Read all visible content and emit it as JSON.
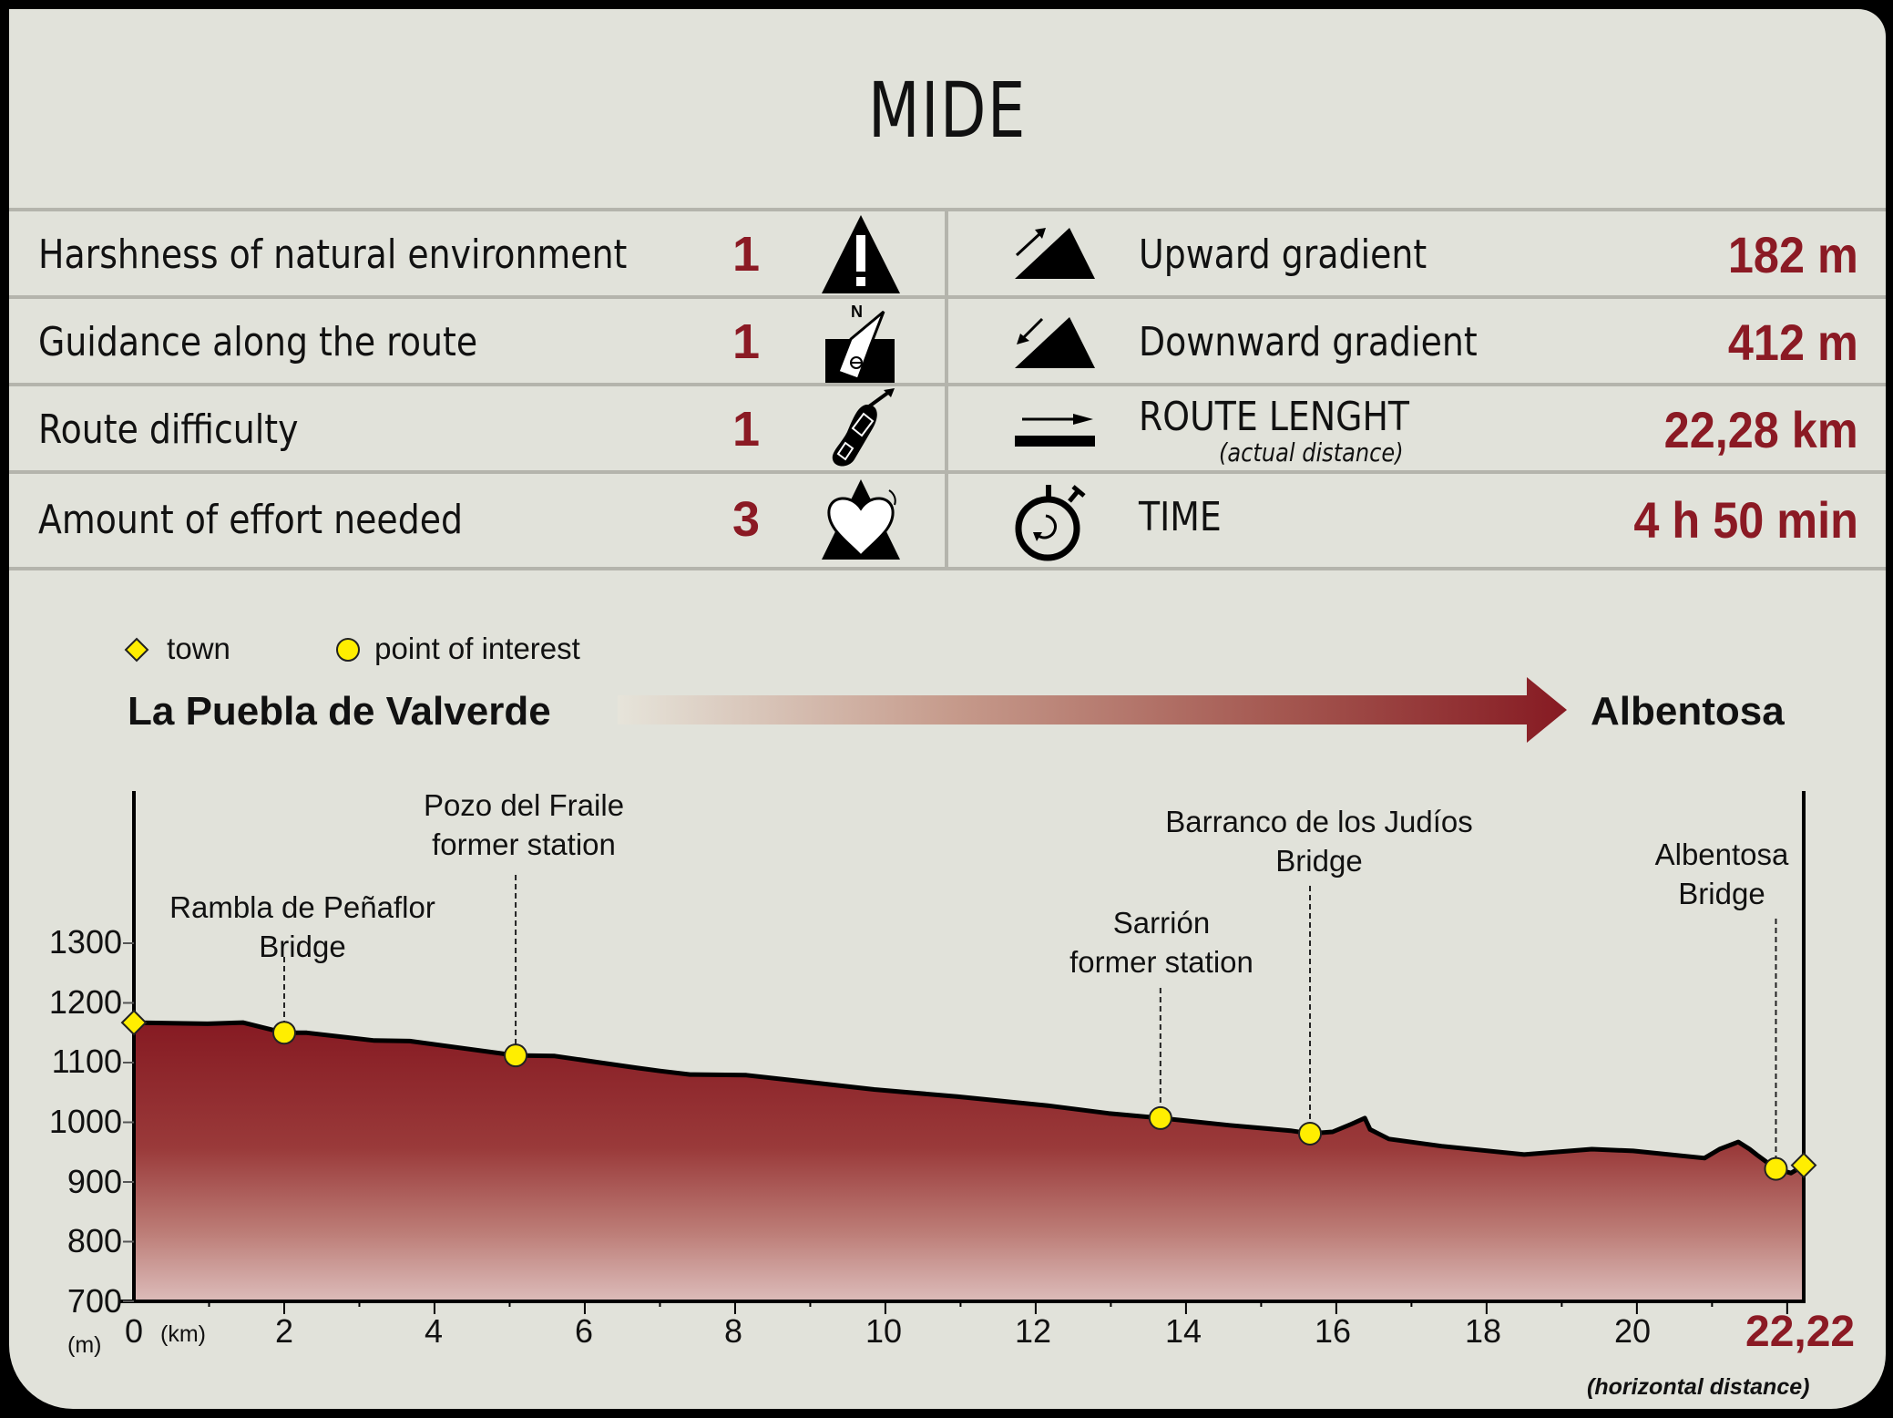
{
  "title": "MIDE",
  "mide": [
    {
      "label": "Harshness of natural environment",
      "score": "1",
      "icon": "mountain-warning-icon"
    },
    {
      "label": "Guidance along the route",
      "score": "1",
      "icon": "compass-orientation-icon"
    },
    {
      "label": "Route difficulty",
      "score": "1",
      "icon": "footprint-icon"
    },
    {
      "label": "Amount of effort needed",
      "score": "3",
      "icon": "heart-effort-icon"
    }
  ],
  "stats": [
    {
      "label": "Upward gradient",
      "sublabel": "",
      "value": "182 m",
      "icon": "upward-gradient-icon"
    },
    {
      "label": "Downward gradient",
      "sublabel": "",
      "value": "412 m",
      "icon": "downward-gradient-icon"
    },
    {
      "label": "ROUTE LENGHT",
      "sublabel": "(actual distance)",
      "value": "22,28 km",
      "icon": "route-length-icon"
    },
    {
      "label": "TIME",
      "sublabel": "",
      "value": "4 h 50 min",
      "icon": "stopwatch-icon"
    }
  ],
  "legend": {
    "town": "town",
    "poi": "point of interest"
  },
  "route": {
    "start": "La Puebla de Valverde",
    "end": "Albentosa"
  },
  "colors": {
    "accent": "#8b1a24",
    "background": "#e1e2da",
    "marker": "#ffee00",
    "divider": "#b4b4ac"
  },
  "chart_data": {
    "type": "area",
    "title": "Elevation profile: La Puebla de Valverde → Albentosa",
    "xlabel": "(km)",
    "ylabel": "(m)",
    "xlim": [
      0,
      22.22
    ],
    "ylim": [
      700,
      1300
    ],
    "x_ticks": [
      "0",
      "2",
      "4",
      "6",
      "8",
      "10",
      "12",
      "14",
      "16",
      "18",
      "20"
    ],
    "x_end_label": "22,22",
    "x_note": "(horizontal distance)",
    "y_ticks": [
      "1300",
      "1200",
      "1100",
      "1000",
      "900",
      "800",
      "700"
    ],
    "grid": false,
    "x": [
      0,
      0.98,
      1.45,
      2.0,
      2.3,
      3.2,
      3.67,
      5.08,
      5.6,
      6.2,
      6.7,
      7.0,
      7.4,
      8.15,
      9.0,
      9.85,
      10.95,
      12.16,
      12.97,
      13.66,
      14.58,
      15.39,
      15.65,
      15.95,
      16.2,
      16.38,
      16.45,
      16.7,
      17.4,
      18.5,
      19.4,
      19.95,
      20.9,
      21.1,
      21.35,
      21.5,
      21.6,
      21.85,
      22.05,
      22.22
    ],
    "elevation": [
      1167,
      1165,
      1167,
      1150,
      1150,
      1137,
      1136,
      1112,
      1111,
      1100,
      1091,
      1086,
      1080,
      1079,
      1067,
      1055,
      1043,
      1028,
      1015,
      1007,
      995,
      986,
      981,
      984,
      997,
      1007,
      988,
      972,
      960,
      946,
      955,
      952,
      940,
      955,
      967,
      955,
      945,
      922,
      915,
      928
    ],
    "towns": [
      {
        "name": "La Puebla de Valverde",
        "km": 0,
        "elev": 1167
      },
      {
        "name": "Albentosa",
        "km": 22.22,
        "elev": 928
      }
    ],
    "points_of_interest": [
      {
        "label": [
          "Rambla de Peñaflor",
          "Bridge"
        ],
        "km": 2.0,
        "elev": 1150
      },
      {
        "label": [
          "Pozo del Fraile",
          "former station"
        ],
        "km": 5.08,
        "elev": 1112
      },
      {
        "label": [
          "Sarrión",
          "former station"
        ],
        "km": 13.66,
        "elev": 1007
      },
      {
        "label": [
          "Barranco de los Judíos",
          "Bridge"
        ],
        "km": 15.65,
        "elev": 981
      },
      {
        "label": [
          "Albentosa",
          "Bridge"
        ],
        "km": 21.85,
        "elev": 922
      }
    ]
  }
}
